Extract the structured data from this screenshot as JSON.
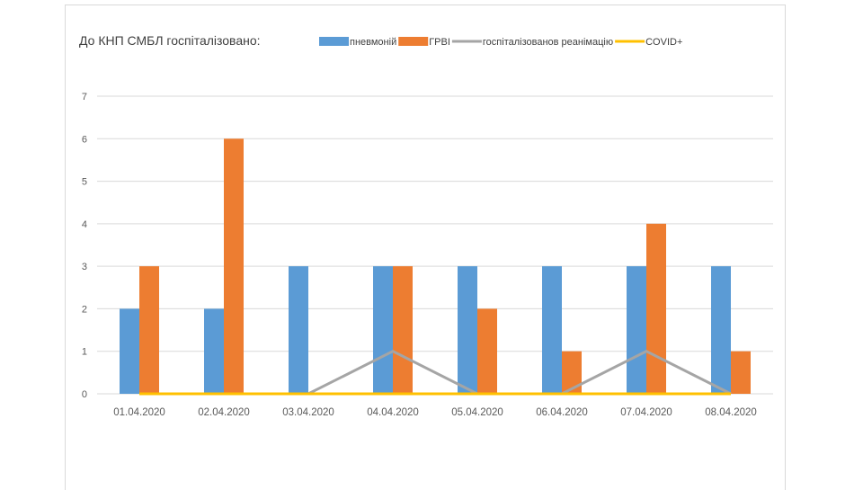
{
  "colors": {
    "pneumonia": "#5b9bd5",
    "grvi": "#ed7d31",
    "icu": "#a5a5a5",
    "covid": "#ffc000",
    "grid": "#d9d9d9",
    "text": "#595959"
  },
  "chart_data": {
    "type": "bar",
    "title": "До КНП СМБЛ госпіталізовано:",
    "categories": [
      "01.04.2020",
      "02.04.2020",
      "03.04.2020",
      "04.04.2020",
      "05.04.2020",
      "06.04.2020",
      "07.04.2020",
      "08.04.2020"
    ],
    "ylim": [
      0,
      7
    ],
    "yticks": [
      0,
      1,
      2,
      3,
      4,
      5,
      6,
      7
    ],
    "grid": true,
    "legend_position": "top",
    "series": [
      {
        "name": "пневмоній",
        "kind": "bar",
        "color": "#5b9bd5",
        "values": [
          2,
          2,
          3,
          3,
          3,
          3,
          3,
          3
        ]
      },
      {
        "name": "ГРВІ",
        "kind": "bar",
        "color": "#ed7d31",
        "values": [
          3,
          6,
          0,
          3,
          2,
          1,
          4,
          1
        ]
      },
      {
        "name": "госпіталізованов реанімацію",
        "kind": "line",
        "color": "#a5a5a5",
        "values": [
          0,
          0,
          0,
          1,
          0,
          0,
          1,
          0
        ]
      },
      {
        "name": "COVID+",
        "kind": "line",
        "color": "#ffc000",
        "values": [
          0,
          0,
          0,
          0,
          0,
          0,
          0,
          0
        ]
      }
    ]
  }
}
